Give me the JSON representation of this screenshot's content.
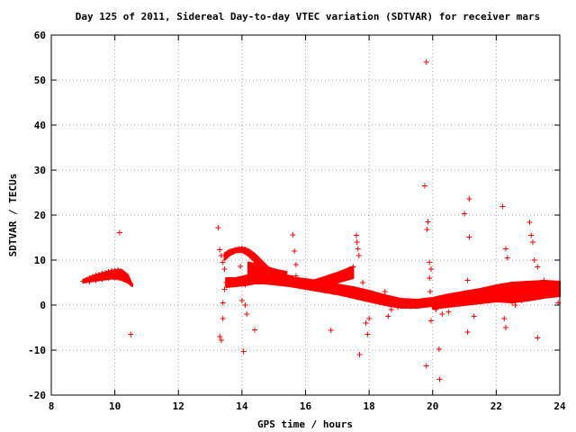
{
  "chart_data": {
    "type": "scatter",
    "title": "Day 125 of 2011, Sidereal Day-to-day VTEC variation (SDTVAR) for receiver mars",
    "xlabel": "GPS time / hours",
    "ylabel": "SDTVAR / TECUs",
    "xlim": [
      8,
      24
    ],
    "ylim": [
      -20,
      60
    ],
    "xticks": [
      "8",
      "10",
      "12",
      "14",
      "16",
      "18",
      "20",
      "22",
      "24"
    ],
    "yticks": [
      "-20",
      "-10",
      "0",
      "10",
      "20",
      "30",
      "40",
      "50",
      "60"
    ],
    "grid": true,
    "marker": "+",
    "marker_color": "#ff0000",
    "series": [
      {
        "name": "",
        "points": [
          [
            9.0,
            5.3
          ],
          [
            9.1,
            5.6
          ],
          [
            9.2,
            6.0
          ],
          [
            9.3,
            6.3
          ],
          [
            9.4,
            6.6
          ],
          [
            9.5,
            6.8
          ],
          [
            9.6,
            7.0
          ],
          [
            9.7,
            7.2
          ],
          [
            9.8,
            7.4
          ],
          [
            9.9,
            7.6
          ],
          [
            10.0,
            7.7
          ],
          [
            10.1,
            7.8
          ],
          [
            9.2,
            5.2
          ],
          [
            9.4,
            5.5
          ],
          [
            9.6,
            5.8
          ],
          [
            9.8,
            6.0
          ],
          [
            10.0,
            6.1
          ],
          [
            10.2,
            6.0
          ],
          [
            10.4,
            5.6
          ],
          [
            10.5,
            4.8
          ],
          [
            10.15,
            16.1
          ],
          [
            10.5,
            -6.5
          ],
          [
            13.25,
            17.2
          ],
          [
            13.3,
            12.3
          ],
          [
            13.35,
            11.0
          ],
          [
            13.4,
            9.5
          ],
          [
            13.45,
            8.0
          ],
          [
            13.3,
            -7.0
          ],
          [
            13.35,
            -7.8
          ],
          [
            13.4,
            -3.0
          ],
          [
            13.4,
            0.5
          ],
          [
            13.45,
            3.5
          ],
          [
            13.5,
            5.0
          ],
          [
            13.6,
            5.2
          ],
          [
            13.7,
            4.8
          ],
          [
            13.8,
            5.0
          ],
          [
            13.9,
            5.5
          ],
          [
            14.0,
            5.8
          ],
          [
            14.1,
            4.5
          ],
          [
            14.2,
            6.0
          ],
          [
            14.3,
            6.8
          ],
          [
            13.6,
            11.5
          ],
          [
            13.7,
            12.0
          ],
          [
            13.8,
            12.3
          ],
          [
            13.9,
            12.5
          ],
          [
            14.0,
            12.6
          ],
          [
            14.1,
            12.4
          ],
          [
            14.2,
            11.8
          ],
          [
            14.3,
            11.2
          ],
          [
            14.4,
            10.5
          ],
          [
            14.5,
            9.8
          ],
          [
            14.6,
            9.2
          ],
          [
            14.7,
            8.6
          ],
          [
            14.8,
            8.0
          ],
          [
            14.9,
            7.5
          ],
          [
            15.0,
            7.0
          ],
          [
            15.1,
            6.6
          ],
          [
            15.2,
            6.3
          ],
          [
            15.3,
            6.1
          ],
          [
            15.4,
            6.0
          ],
          [
            13.95,
            8.6
          ],
          [
            14.05,
            -10.3
          ],
          [
            14.0,
            1.0
          ],
          [
            14.1,
            0.0
          ],
          [
            14.15,
            -2.0
          ],
          [
            14.4,
            -5.5
          ],
          [
            15.6,
            15.6
          ],
          [
            15.65,
            12.0
          ],
          [
            15.7,
            9.0
          ],
          [
            15.7,
            6.5
          ],
          [
            15.8,
            5.5
          ],
          [
            16.0,
            5.0
          ],
          [
            16.2,
            4.6
          ],
          [
            16.4,
            4.2
          ],
          [
            16.6,
            3.8
          ],
          [
            16.8,
            3.4
          ],
          [
            17.0,
            3.0
          ],
          [
            16.0,
            4.0
          ],
          [
            16.3,
            3.6
          ],
          [
            16.6,
            3.2
          ],
          [
            16.9,
            2.8
          ],
          [
            17.2,
            2.6
          ],
          [
            17.5,
            2.5
          ],
          [
            16.8,
            -5.6
          ],
          [
            17.0,
            6.0
          ],
          [
            17.2,
            7.0
          ],
          [
            17.4,
            8.0
          ],
          [
            17.5,
            8.5
          ],
          [
            17.6,
            15.5
          ],
          [
            17.62,
            14.0
          ],
          [
            17.65,
            12.5
          ],
          [
            17.68,
            11.0
          ],
          [
            17.7,
            -11.0
          ],
          [
            17.8,
            5.0
          ],
          [
            17.9,
            -4.0
          ],
          [
            17.95,
            -6.5
          ],
          [
            18.0,
            -3.0
          ],
          [
            17.8,
            2.2
          ],
          [
            18.0,
            1.9
          ],
          [
            18.2,
            1.5
          ],
          [
            18.4,
            1.2
          ],
          [
            18.6,
            0.8
          ],
          [
            18.8,
            0.5
          ],
          [
            19.0,
            0.3
          ],
          [
            19.2,
            0.2
          ],
          [
            19.4,
            0.3
          ],
          [
            19.6,
            0.5
          ],
          [
            18.5,
            3.0
          ],
          [
            18.6,
            -2.5
          ],
          [
            18.7,
            -1.0
          ],
          [
            18.9,
            -0.5
          ],
          [
            19.3,
            -0.3
          ],
          [
            19.8,
            54.0
          ],
          [
            19.75,
            26.5
          ],
          [
            19.85,
            18.5
          ],
          [
            19.82,
            16.8
          ],
          [
            19.9,
            9.5
          ],
          [
            19.95,
            8.0
          ],
          [
            19.9,
            6.0
          ],
          [
            19.92,
            3.0
          ],
          [
            19.8,
            -13.5
          ],
          [
            19.95,
            -3.5
          ],
          [
            20.1,
            -1.0
          ],
          [
            20.2,
            -9.8
          ],
          [
            20.22,
            -16.5
          ],
          [
            20.3,
            -2.0
          ],
          [
            20.5,
            -1.5
          ],
          [
            20.0,
            0.5
          ],
          [
            20.2,
            1.0
          ],
          [
            20.4,
            1.4
          ],
          [
            20.6,
            1.8
          ],
          [
            20.8,
            2.2
          ],
          [
            21.0,
            2.5
          ],
          [
            21.2,
            2.8
          ],
          [
            21.4,
            3.0
          ],
          [
            21.6,
            3.3
          ],
          [
            21.8,
            3.6
          ],
          [
            21.0,
            20.3
          ],
          [
            21.15,
            23.6
          ],
          [
            21.15,
            15.1
          ],
          [
            21.1,
            -6.0
          ],
          [
            21.3,
            -2.5
          ],
          [
            21.1,
            5.5
          ],
          [
            22.0,
            3.8
          ],
          [
            22.2,
            4.0
          ],
          [
            22.4,
            4.2
          ],
          [
            22.6,
            4.4
          ],
          [
            22.8,
            4.6
          ],
          [
            23.0,
            4.8
          ],
          [
            23.2,
            4.9
          ],
          [
            23.4,
            5.0
          ],
          [
            23.6,
            5.0
          ],
          [
            23.8,
            4.9
          ],
          [
            23.95,
            4.6
          ],
          [
            22.2,
            21.9
          ],
          [
            22.3,
            12.5
          ],
          [
            22.35,
            10.5
          ],
          [
            22.25,
            -3.0
          ],
          [
            22.3,
            -5.0
          ],
          [
            22.5,
            0.5
          ],
          [
            22.6,
            0.0
          ],
          [
            22.8,
            1.0
          ],
          [
            23.05,
            18.4
          ],
          [
            23.1,
            15.5
          ],
          [
            23.15,
            14.0
          ],
          [
            23.2,
            10.0
          ],
          [
            23.3,
            8.5
          ],
          [
            23.5,
            5.5
          ],
          [
            23.3,
            -7.3
          ],
          [
            23.95,
            0.5
          ]
        ]
      }
    ],
    "bands": [
      {
        "x": [
          9.0,
          9.2,
          9.4,
          9.6,
          9.8,
          10.0,
          10.2,
          10.4,
          10.55
        ],
        "top": [
          5.6,
          6.2,
          6.7,
          7.1,
          7.5,
          7.8,
          7.9,
          6.8,
          4.5
        ],
        "bottom": [
          5.0,
          5.2,
          5.4,
          5.6,
          5.8,
          5.9,
          5.6,
          5.0,
          4.2
        ]
      },
      {
        "x": [
          13.45,
          13.6,
          13.8,
          14.0,
          14.2,
          14.4,
          14.6,
          14.8,
          15.0,
          15.2,
          15.4,
          15.6
        ],
        "top": [
          11.5,
          12.2,
          12.6,
          12.8,
          12.4,
          11.4,
          10.0,
          8.6,
          7.6,
          7.0,
          6.6,
          6.4
        ],
        "bottom": [
          10.0,
          11.0,
          11.7,
          11.8,
          11.0,
          9.6,
          8.4,
          7.4,
          6.6,
          6.0,
          5.6,
          5.4
        ]
      },
      {
        "x": [
          13.5,
          13.8,
          14.1,
          14.4,
          14.7,
          15.0,
          15.5,
          16.0,
          16.5,
          17.0,
          17.5,
          18.0,
          18.5,
          19.0,
          19.5,
          20.0,
          20.5,
          21.0,
          21.5,
          22.0,
          22.5,
          23.0,
          23.5,
          24.0
        ],
        "top": [
          6.0,
          6.0,
          6.5,
          7.0,
          7.0,
          6.8,
          6.2,
          5.8,
          5.2,
          4.6,
          4.0,
          3.2,
          2.2,
          1.4,
          1.2,
          1.6,
          2.4,
          3.0,
          3.6,
          4.4,
          5.0,
          5.2,
          5.4,
          5.2
        ],
        "bottom": [
          4.0,
          4.2,
          4.4,
          4.8,
          4.8,
          4.6,
          4.2,
          3.6,
          3.0,
          2.4,
          1.6,
          0.8,
          0.0,
          -0.6,
          -0.6,
          -0.2,
          0.6,
          1.2,
          1.8,
          2.4,
          2.8,
          3.0,
          3.2,
          3.0
        ]
      },
      {
        "x": [
          14.2,
          14.5,
          14.8,
          15.1,
          15.4
        ],
        "top": [
          9.5,
          9.0,
          8.4,
          7.8,
          7.4
        ],
        "bottom": [
          5.6,
          5.4,
          5.2,
          5.2,
          5.2
        ]
      },
      {
        "x": [
          16.0,
          16.5,
          17.0,
          17.5
        ],
        "top": [
          5.0,
          6.0,
          7.2,
          8.6
        ],
        "bottom": [
          4.0,
          4.4,
          5.0,
          6.0
        ]
      },
      {
        "x": [
          20.0,
          20.5,
          21.0,
          21.5,
          22.0,
          22.5,
          23.0,
          23.5,
          24.0
        ],
        "top": [
          1.5,
          2.2,
          3.0,
          3.5,
          4.0,
          4.8,
          5.2,
          5.2,
          5.0
        ],
        "bottom": [
          -0.8,
          -0.4,
          0.0,
          0.4,
          0.8,
          0.6,
          1.0,
          1.6,
          2.0
        ]
      }
    ]
  }
}
